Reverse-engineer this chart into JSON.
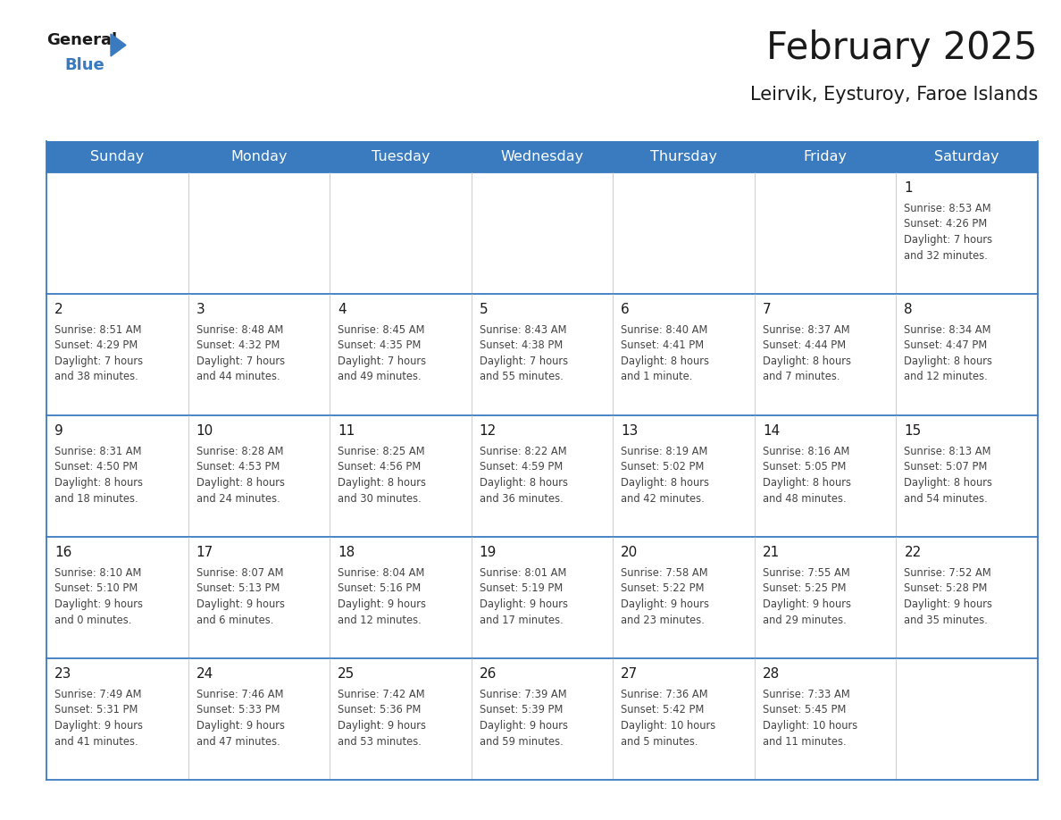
{
  "title": "February 2025",
  "subtitle": "Leirvik, Eysturoy, Faroe Islands",
  "header_bg_color": "#3A7BBF",
  "header_text_color": "#FFFFFF",
  "cell_bg_color": "#FFFFFF",
  "border_color": "#3A7BBF",
  "day_headers": [
    "Sunday",
    "Monday",
    "Tuesday",
    "Wednesday",
    "Thursday",
    "Friday",
    "Saturday"
  ],
  "title_color": "#1a1a1a",
  "subtitle_color": "#1a1a1a",
  "cell_text_color": "#444444",
  "day_number_color": "#1a1a1a",
  "logo_color_general": "#1a1a1a",
  "logo_color_blue": "#3A7BBF",
  "calendar_data": [
    [
      {
        "day": "",
        "info": ""
      },
      {
        "day": "",
        "info": ""
      },
      {
        "day": "",
        "info": ""
      },
      {
        "day": "",
        "info": ""
      },
      {
        "day": "",
        "info": ""
      },
      {
        "day": "",
        "info": ""
      },
      {
        "day": "1",
        "info": "Sunrise: 8:53 AM\nSunset: 4:26 PM\nDaylight: 7 hours\nand 32 minutes."
      }
    ],
    [
      {
        "day": "2",
        "info": "Sunrise: 8:51 AM\nSunset: 4:29 PM\nDaylight: 7 hours\nand 38 minutes."
      },
      {
        "day": "3",
        "info": "Sunrise: 8:48 AM\nSunset: 4:32 PM\nDaylight: 7 hours\nand 44 minutes."
      },
      {
        "day": "4",
        "info": "Sunrise: 8:45 AM\nSunset: 4:35 PM\nDaylight: 7 hours\nand 49 minutes."
      },
      {
        "day": "5",
        "info": "Sunrise: 8:43 AM\nSunset: 4:38 PM\nDaylight: 7 hours\nand 55 minutes."
      },
      {
        "day": "6",
        "info": "Sunrise: 8:40 AM\nSunset: 4:41 PM\nDaylight: 8 hours\nand 1 minute."
      },
      {
        "day": "7",
        "info": "Sunrise: 8:37 AM\nSunset: 4:44 PM\nDaylight: 8 hours\nand 7 minutes."
      },
      {
        "day": "8",
        "info": "Sunrise: 8:34 AM\nSunset: 4:47 PM\nDaylight: 8 hours\nand 12 minutes."
      }
    ],
    [
      {
        "day": "9",
        "info": "Sunrise: 8:31 AM\nSunset: 4:50 PM\nDaylight: 8 hours\nand 18 minutes."
      },
      {
        "day": "10",
        "info": "Sunrise: 8:28 AM\nSunset: 4:53 PM\nDaylight: 8 hours\nand 24 minutes."
      },
      {
        "day": "11",
        "info": "Sunrise: 8:25 AM\nSunset: 4:56 PM\nDaylight: 8 hours\nand 30 minutes."
      },
      {
        "day": "12",
        "info": "Sunrise: 8:22 AM\nSunset: 4:59 PM\nDaylight: 8 hours\nand 36 minutes."
      },
      {
        "day": "13",
        "info": "Sunrise: 8:19 AM\nSunset: 5:02 PM\nDaylight: 8 hours\nand 42 minutes."
      },
      {
        "day": "14",
        "info": "Sunrise: 8:16 AM\nSunset: 5:05 PM\nDaylight: 8 hours\nand 48 minutes."
      },
      {
        "day": "15",
        "info": "Sunrise: 8:13 AM\nSunset: 5:07 PM\nDaylight: 8 hours\nand 54 minutes."
      }
    ],
    [
      {
        "day": "16",
        "info": "Sunrise: 8:10 AM\nSunset: 5:10 PM\nDaylight: 9 hours\nand 0 minutes."
      },
      {
        "day": "17",
        "info": "Sunrise: 8:07 AM\nSunset: 5:13 PM\nDaylight: 9 hours\nand 6 minutes."
      },
      {
        "day": "18",
        "info": "Sunrise: 8:04 AM\nSunset: 5:16 PM\nDaylight: 9 hours\nand 12 minutes."
      },
      {
        "day": "19",
        "info": "Sunrise: 8:01 AM\nSunset: 5:19 PM\nDaylight: 9 hours\nand 17 minutes."
      },
      {
        "day": "20",
        "info": "Sunrise: 7:58 AM\nSunset: 5:22 PM\nDaylight: 9 hours\nand 23 minutes."
      },
      {
        "day": "21",
        "info": "Sunrise: 7:55 AM\nSunset: 5:25 PM\nDaylight: 9 hours\nand 29 minutes."
      },
      {
        "day": "22",
        "info": "Sunrise: 7:52 AM\nSunset: 5:28 PM\nDaylight: 9 hours\nand 35 minutes."
      }
    ],
    [
      {
        "day": "23",
        "info": "Sunrise: 7:49 AM\nSunset: 5:31 PM\nDaylight: 9 hours\nand 41 minutes."
      },
      {
        "day": "24",
        "info": "Sunrise: 7:46 AM\nSunset: 5:33 PM\nDaylight: 9 hours\nand 47 minutes."
      },
      {
        "day": "25",
        "info": "Sunrise: 7:42 AM\nSunset: 5:36 PM\nDaylight: 9 hours\nand 53 minutes."
      },
      {
        "day": "26",
        "info": "Sunrise: 7:39 AM\nSunset: 5:39 PM\nDaylight: 9 hours\nand 59 minutes."
      },
      {
        "day": "27",
        "info": "Sunrise: 7:36 AM\nSunset: 5:42 PM\nDaylight: 10 hours\nand 5 minutes."
      },
      {
        "day": "28",
        "info": "Sunrise: 7:33 AM\nSunset: 5:45 PM\nDaylight: 10 hours\nand 11 minutes."
      },
      {
        "day": "",
        "info": ""
      }
    ]
  ]
}
